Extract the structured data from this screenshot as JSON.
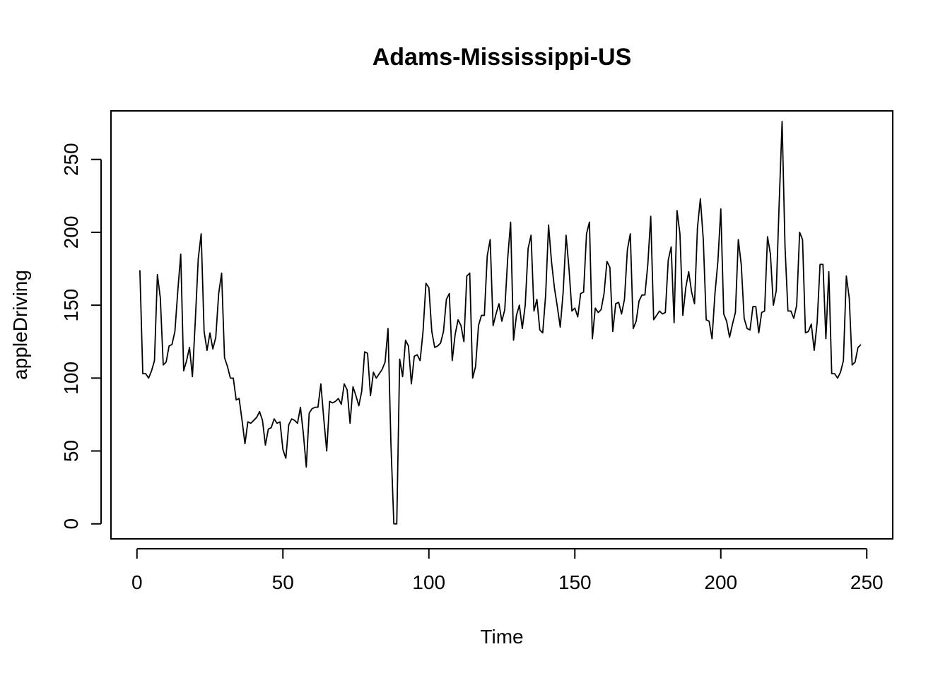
{
  "chart_data": {
    "type": "line",
    "title": "Adams-Mississippi-US",
    "xlabel": "Time",
    "ylabel": "appleDriving",
    "xlim": [
      -8.9,
      258.9
    ],
    "ylim": [
      -10.3,
      283.3
    ],
    "xticks": [
      0,
      50,
      100,
      150,
      200,
      250
    ],
    "yticks": [
      0,
      50,
      100,
      150,
      200,
      250
    ],
    "grid": false,
    "line_color": "#000000",
    "series": [
      {
        "x": [
          1,
          2,
          3,
          4,
          5,
          6,
          7,
          8,
          9,
          10,
          11,
          12,
          13,
          14,
          15,
          16,
          17,
          18,
          19,
          20,
          21,
          22,
          23,
          24,
          25,
          26,
          27,
          28,
          29,
          30,
          31,
          32,
          33,
          34,
          35,
          36,
          37,
          38,
          39,
          40,
          41,
          42,
          43,
          44,
          45,
          46,
          47,
          48,
          49,
          50,
          51,
          52,
          53,
          54,
          55,
          56,
          57,
          58,
          59,
          60,
          61,
          62,
          63,
          64,
          65,
          66,
          67,
          68,
          69,
          70,
          71,
          72,
          73,
          74,
          75,
          76,
          77,
          78,
          79,
          80,
          81,
          82,
          83,
          84,
          85,
          86,
          87,
          88,
          89,
          90,
          91,
          92,
          93,
          94,
          95,
          96,
          97,
          98,
          99,
          100,
          101,
          102,
          103,
          104,
          105,
          106,
          107,
          108,
          109,
          110,
          111,
          112,
          113,
          114,
          115,
          116,
          117,
          118,
          119,
          120,
          121,
          122,
          123,
          124,
          125,
          126,
          127,
          128,
          129,
          130,
          131,
          132,
          133,
          134,
          135,
          136,
          137,
          138,
          139,
          140,
          141,
          142,
          143,
          144,
          145,
          146,
          147,
          148,
          149,
          150,
          151,
          152,
          153,
          154,
          155,
          156,
          157,
          158,
          159,
          160,
          161,
          162,
          163,
          164,
          165,
          166,
          167,
          168,
          169,
          170,
          171,
          172,
          173,
          174,
          175,
          176,
          177,
          178,
          179,
          180,
          181,
          182,
          183,
          184,
          185,
          186,
          187,
          188,
          189,
          190,
          191,
          192,
          193,
          194,
          195,
          196,
          197,
          198,
          199,
          200,
          201,
          202,
          203,
          204,
          205,
          206,
          207,
          208,
          209,
          210,
          211,
          212,
          213,
          214,
          215,
          216,
          217,
          218,
          219,
          220,
          221,
          222,
          223,
          224,
          225,
          226,
          227,
          228,
          229,
          230,
          231,
          232,
          233,
          234,
          235,
          236,
          237,
          238,
          239,
          240,
          241,
          242,
          243,
          244,
          245,
          246,
          247,
          248
        ],
        "values": [
          174,
          103,
          103,
          100,
          105,
          112,
          171,
          155,
          109,
          111,
          122,
          123,
          132,
          160,
          185,
          105,
          112,
          121,
          101,
          140,
          182,
          199,
          132,
          119,
          131,
          120,
          128,
          158,
          172,
          114,
          108,
          100,
          100,
          85,
          86,
          71,
          55,
          70,
          69,
          71,
          73,
          77,
          71,
          54,
          65,
          66,
          72,
          69,
          70,
          51,
          45,
          68,
          72,
          71,
          69,
          80,
          62,
          39,
          76,
          79,
          80,
          80,
          96,
          72,
          50,
          84,
          83,
          84,
          86,
          82,
          96,
          92,
          69,
          94,
          88,
          81,
          91,
          118,
          117,
          88,
          104,
          100,
          103,
          106,
          111,
          134,
          55,
          0,
          0,
          113,
          101,
          126,
          122,
          96,
          115,
          116,
          112,
          132,
          165,
          162,
          132,
          121,
          122,
          124,
          132,
          154,
          158,
          112,
          130,
          140,
          136,
          125,
          170,
          172,
          100,
          108,
          136,
          143,
          143,
          184,
          195,
          136,
          144,
          151,
          139,
          147,
          182,
          207,
          126,
          143,
          150,
          134,
          150,
          189,
          198,
          146,
          154,
          133,
          131,
          157,
          205,
          180,
          162,
          149,
          135,
          159,
          198,
          175,
          146,
          148,
          142,
          158,
          159,
          199,
          207,
          127,
          148,
          145,
          147,
          158,
          180,
          176,
          132,
          151,
          152,
          144,
          154,
          188,
          199,
          134,
          139,
          153,
          157,
          157,
          178,
          211,
          140,
          143,
          146,
          144,
          145,
          181,
          190,
          138,
          215,
          199,
          143,
          162,
          173,
          159,
          151,
          203,
          223,
          195,
          140,
          139,
          127,
          158,
          180,
          216,
          144,
          139,
          128,
          137,
          145,
          195,
          178,
          141,
          134,
          133,
          149,
          149,
          131,
          145,
          146,
          197,
          185,
          150,
          160,
          220,
          276,
          190,
          146,
          146,
          141,
          150,
          200,
          195,
          131,
          132,
          137,
          119,
          138,
          178,
          178,
          127,
          173,
          103,
          103,
          100,
          104,
          112,
          170,
          155,
          109,
          111,
          121,
          123
        ]
      }
    ]
  }
}
